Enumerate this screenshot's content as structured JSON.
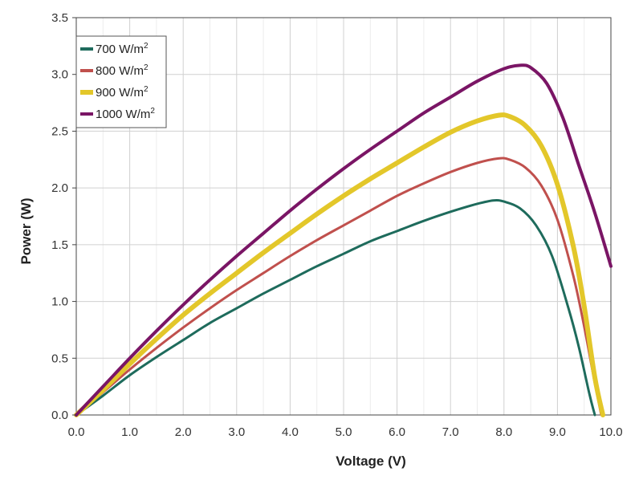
{
  "chart_data": {
    "type": "line",
    "title": "",
    "xlabel": "Voltage (V)",
    "ylabel": "Power (W)",
    "xlim": [
      0,
      10
    ],
    "ylim": [
      0,
      3.5
    ],
    "x_ticks": [
      "0.0",
      "1.0",
      "2.0",
      "3.0",
      "4.0",
      "5.0",
      "6.0",
      "7.0",
      "8.0",
      "9.0",
      "10.0"
    ],
    "y_ticks": [
      "0.0",
      "0.5",
      "1.0",
      "1.5",
      "2.0",
      "2.5",
      "3.0",
      "3.5"
    ],
    "grid": true,
    "legend_position": "top-left",
    "series": [
      {
        "name": "700 W/m",
        "superscript": "2",
        "color": "#1e6b5c",
        "line_width": 3,
        "x": [
          0,
          0.5,
          1,
          1.5,
          2,
          2.5,
          3,
          3.5,
          4,
          4.5,
          5,
          5.5,
          6,
          6.5,
          7,
          7.5,
          7.8,
          8,
          8.3,
          8.6,
          8.9,
          9.2,
          9.4,
          9.6,
          9.7
        ],
        "y": [
          0,
          0.17,
          0.35,
          0.51,
          0.66,
          0.81,
          0.94,
          1.07,
          1.19,
          1.31,
          1.42,
          1.53,
          1.62,
          1.71,
          1.79,
          1.86,
          1.89,
          1.88,
          1.82,
          1.67,
          1.4,
          0.95,
          0.6,
          0.18,
          0
        ]
      },
      {
        "name": "800 W/m",
        "superscript": "2",
        "color": "#c0504d",
        "line_width": 3,
        "x": [
          0,
          0.5,
          1,
          1.5,
          2,
          2.5,
          3,
          3.5,
          4,
          4.5,
          5,
          5.5,
          6,
          6.5,
          7,
          7.5,
          7.9,
          8.1,
          8.4,
          8.7,
          9,
          9.3,
          9.5,
          9.7,
          9.82
        ],
        "y": [
          0,
          0.2,
          0.4,
          0.59,
          0.77,
          0.94,
          1.1,
          1.25,
          1.4,
          1.54,
          1.67,
          1.8,
          1.93,
          2.04,
          2.14,
          2.22,
          2.26,
          2.25,
          2.18,
          2.02,
          1.72,
          1.22,
          0.78,
          0.28,
          0
        ]
      },
      {
        "name": "900 W/m",
        "superscript": "2",
        "color": "#e3c72a",
        "line_width": 6,
        "x": [
          0,
          0.5,
          1,
          1.5,
          2,
          2.5,
          3,
          3.5,
          4,
          4.5,
          5,
          5.5,
          6,
          6.5,
          7,
          7.5,
          7.9,
          8.1,
          8.4,
          8.7,
          9,
          9.3,
          9.5,
          9.7,
          9.85
        ],
        "y": [
          0,
          0.22,
          0.45,
          0.67,
          0.88,
          1.07,
          1.25,
          1.43,
          1.6,
          1.77,
          1.93,
          2.08,
          2.22,
          2.36,
          2.49,
          2.59,
          2.64,
          2.63,
          2.55,
          2.37,
          2.03,
          1.48,
          0.96,
          0.33,
          0
        ]
      },
      {
        "name": "1000 W/m",
        "superscript": "2",
        "color": "#7a1565",
        "line_width": 4,
        "x": [
          0,
          0.5,
          1,
          1.5,
          2,
          2.5,
          3,
          3.5,
          4,
          4.5,
          5,
          5.5,
          6,
          6.5,
          7,
          7.5,
          8,
          8.3,
          8.5,
          8.8,
          9.1,
          9.4,
          9.7,
          10
        ],
        "y": [
          0,
          0.25,
          0.5,
          0.74,
          0.97,
          1.19,
          1.4,
          1.6,
          1.8,
          1.99,
          2.17,
          2.34,
          2.5,
          2.66,
          2.8,
          2.94,
          3.05,
          3.08,
          3.06,
          2.92,
          2.62,
          2.2,
          1.78,
          1.31
        ]
      }
    ]
  }
}
